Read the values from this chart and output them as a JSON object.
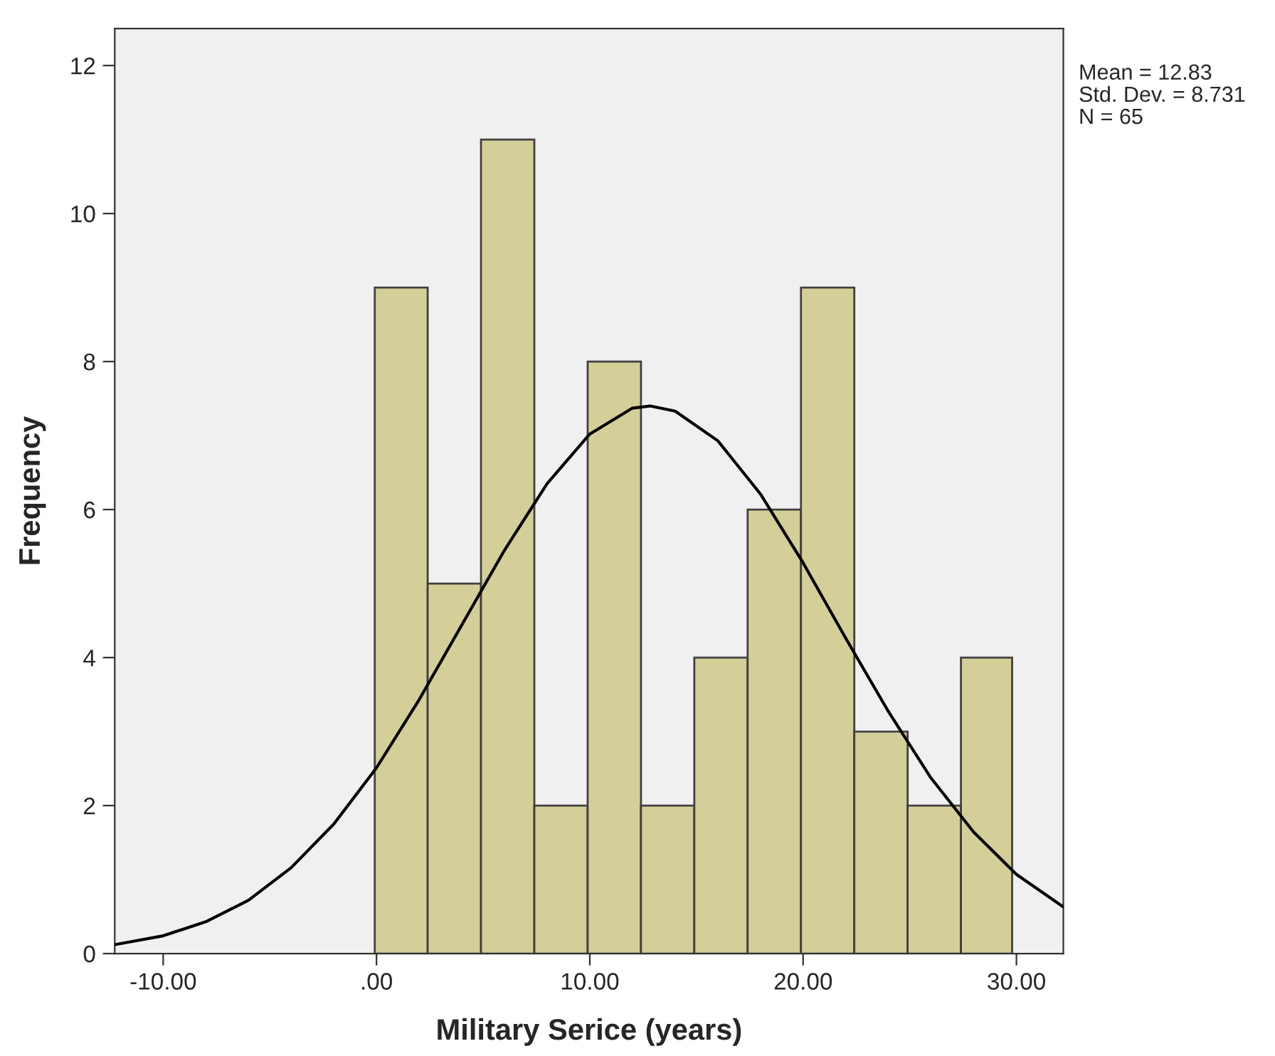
{
  "chart_data": {
    "type": "histogram",
    "xlabel": "Military Serice (years)",
    "ylabel": "Frequency",
    "annotations": [
      "Mean = 12.83",
      "Std. Dev. = 8.731",
      "N = 65"
    ],
    "series": [
      {
        "color": "#d4cf98",
        "bins": [
          -0.08,
          2.4,
          4.9,
          7.4,
          9.9,
          12.4,
          14.9,
          17.4,
          19.9,
          22.4,
          24.9,
          27.4,
          29.8
        ],
        "values": [
          9,
          5,
          11,
          2,
          8,
          2,
          4,
          6,
          9,
          3,
          2,
          4
        ]
      },
      {
        "type": "line",
        "color": "#000000",
        "x": [
          -12.27,
          -10,
          -8,
          -6,
          -4,
          -2,
          0,
          2,
          4,
          6,
          8,
          10,
          12,
          12.83,
          14,
          16,
          18,
          20,
          22,
          24,
          26,
          28,
          30,
          32.2
        ],
        "values": [
          0.12,
          0.24,
          0.43,
          0.72,
          1.16,
          1.75,
          2.51,
          3.43,
          4.44,
          5.45,
          6.35,
          7.02,
          7.37,
          7.4,
          7.33,
          6.93,
          6.21,
          5.28,
          4.26,
          3.27,
          2.37,
          1.64,
          1.07,
          0.63
        ]
      }
    ],
    "xlim": [
      -12.27,
      32.2
    ],
    "ylim": [
      0,
      12.5
    ],
    "xticks": [
      {
        "value": -10,
        "label": "-10.00"
      },
      {
        "value": 0,
        "label": ".00"
      },
      {
        "value": 10,
        "label": "10.00"
      },
      {
        "value": 20,
        "label": "20.00"
      },
      {
        "value": 30,
        "label": "30.00"
      }
    ],
    "yticks": [
      0,
      2,
      4,
      6,
      8,
      10,
      12
    ],
    "grid": false,
    "marker": "none",
    "line_style": "solid"
  }
}
